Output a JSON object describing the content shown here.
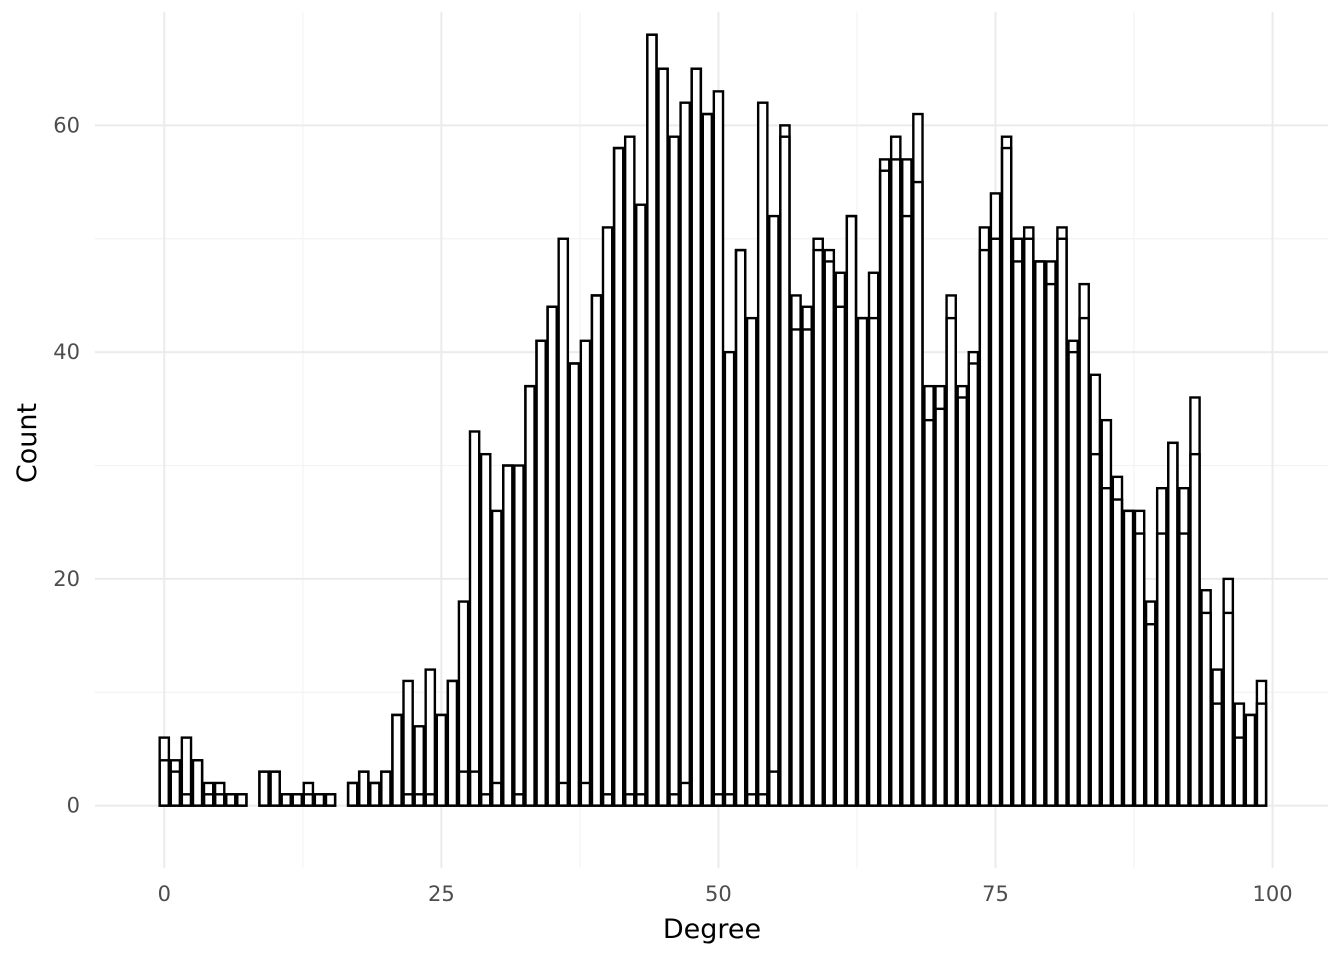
{
  "chart_data": {
    "type": "bar",
    "subtype": "overlaid histogram",
    "title": "",
    "xlabel": "Degree",
    "ylabel": "Count",
    "xlim": [
      -6.25,
      105
    ],
    "ylim": [
      -5.5,
      70
    ],
    "x_ticks": [
      0,
      25,
      50,
      75,
      100
    ],
    "y_ticks": [
      0,
      20,
      40,
      60
    ],
    "grid": true,
    "legend": "none",
    "bin_width": 0.83,
    "fill_color": "#ffffff",
    "stroke_color": "#000000",
    "series": [
      {
        "name": "",
        "x": [
          0,
          1,
          2,
          3,
          4,
          5,
          6,
          7,
          9,
          10,
          11,
          12,
          13,
          14,
          15,
          17,
          18,
          19,
          20,
          21,
          22,
          23,
          24,
          25,
          26,
          27,
          28,
          29,
          30,
          31,
          32,
          33,
          34,
          35,
          36,
          37,
          38,
          39,
          40,
          41,
          42,
          43,
          44,
          45,
          46,
          47,
          48,
          49,
          50,
          51,
          52,
          53,
          54,
          55,
          56,
          57,
          58,
          59,
          60,
          61,
          62,
          63,
          64,
          65,
          66,
          67,
          68,
          69,
          70,
          71,
          72,
          73,
          74,
          75,
          76,
          77,
          78,
          79,
          80,
          81,
          82,
          83,
          84,
          85,
          86,
          87,
          88,
          89,
          90,
          91,
          92,
          93,
          94,
          95,
          96,
          97,
          98,
          99
        ],
        "values": [
          6,
          4,
          6,
          4,
          2,
          2,
          1,
          1,
          3,
          3,
          1,
          1,
          2,
          1,
          1,
          2,
          3,
          2,
          3,
          8,
          11,
          7,
          12,
          8,
          11,
          18,
          33,
          31,
          26,
          30,
          30,
          37,
          41,
          44,
          50,
          39,
          41,
          45,
          51,
          58,
          59,
          53,
          68,
          65,
          59,
          62,
          65,
          61,
          63,
          40,
          49,
          43,
          62,
          52,
          60,
          45,
          44,
          50,
          49,
          47,
          52,
          43,
          47,
          57,
          59,
          57,
          61,
          37,
          37,
          45,
          37,
          40,
          51,
          54,
          59,
          50,
          51,
          48,
          48,
          51,
          41,
          46,
          38,
          34,
          29,
          26,
          26,
          18,
          28,
          32,
          28,
          36,
          19,
          12,
          20,
          9,
          8,
          11
        ]
      },
      {
        "name": "",
        "x": [
          0,
          1,
          2,
          3,
          4,
          5,
          6,
          7,
          9,
          10,
          11,
          12,
          13,
          14,
          15,
          17,
          18,
          19,
          20,
          21,
          22,
          23,
          24,
          25,
          26,
          27,
          28,
          29,
          30,
          31,
          32,
          33,
          34,
          35,
          36,
          37,
          38,
          39,
          40,
          41,
          42,
          43,
          44,
          45,
          46,
          47,
          48,
          49,
          50,
          51,
          52,
          53,
          54,
          55,
          56,
          57,
          58,
          59,
          60,
          61,
          62,
          63,
          64,
          65,
          66,
          67,
          68,
          69,
          70,
          71,
          72,
          73,
          74,
          75,
          76,
          77,
          78,
          79,
          80,
          81,
          82,
          83,
          84,
          85,
          86,
          87,
          88,
          89,
          90,
          91,
          92,
          93,
          94,
          95,
          96,
          97,
          98,
          99
        ],
        "values": [
          4,
          3,
          1,
          4,
          1,
          1,
          1,
          1,
          3,
          3,
          1,
          1,
          1,
          1,
          1,
          2,
          3,
          2,
          3,
          8,
          1,
          1,
          1,
          8,
          11,
          3,
          3,
          1,
          2,
          30,
          1,
          37,
          41,
          44,
          2,
          39,
          2,
          45,
          1,
          58,
          1,
          1,
          68,
          65,
          1,
          2,
          65,
          61,
          1,
          1,
          49,
          1,
          1,
          3,
          59,
          42,
          42,
          49,
          48,
          44,
          52,
          43,
          43,
          56,
          57,
          52,
          55,
          34,
          35,
          43,
          36,
          39,
          49,
          50,
          58,
          48,
          50,
          48,
          46,
          50,
          40,
          43,
          31,
          28,
          27,
          26,
          24,
          16,
          24,
          32,
          24,
          31,
          17,
          9,
          17,
          6,
          8,
          9
        ]
      }
    ]
  }
}
